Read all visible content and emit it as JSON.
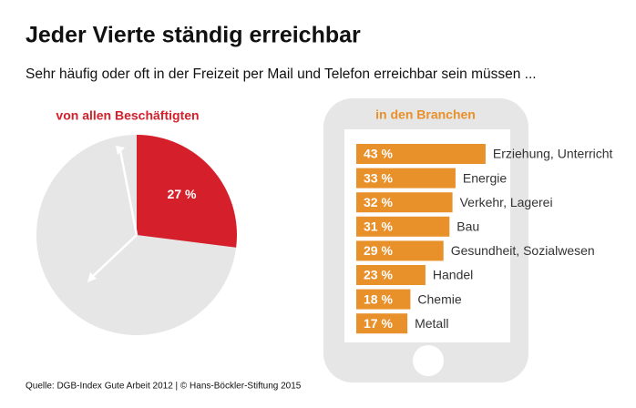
{
  "title": "Jeder Vierte ständig erreichbar",
  "subtitle": "Sehr häufig oder oft in der Freizeit per Mail und Telefon erreichbar sein müssen ...",
  "source": "Quelle: DGB-Index Gute Arbeit 2012 | © Hans-Böckler-Stiftung 2015",
  "chart_data": [
    {
      "type": "pie",
      "title": "von allen Beschäftigten",
      "values": [
        27
      ],
      "value_labels": [
        "27 %"
      ],
      "color": "#d5202b"
    },
    {
      "type": "bar",
      "title": "in den Branchen",
      "categories": [
        "Erziehung, Unterricht",
        "Energie",
        "Verkehr, Lagerei",
        "Bau",
        "Gesundheit, Sozialwesen",
        "Handel",
        "Chemie",
        "Metall"
      ],
      "values": [
        43,
        33,
        32,
        31,
        29,
        23,
        18,
        17
      ],
      "value_labels": [
        "43 %",
        "33 %",
        "32 %",
        "31 %",
        "29 %",
        "23 %",
        "18 %",
        "17 %"
      ],
      "color": "#e8902a"
    }
  ]
}
